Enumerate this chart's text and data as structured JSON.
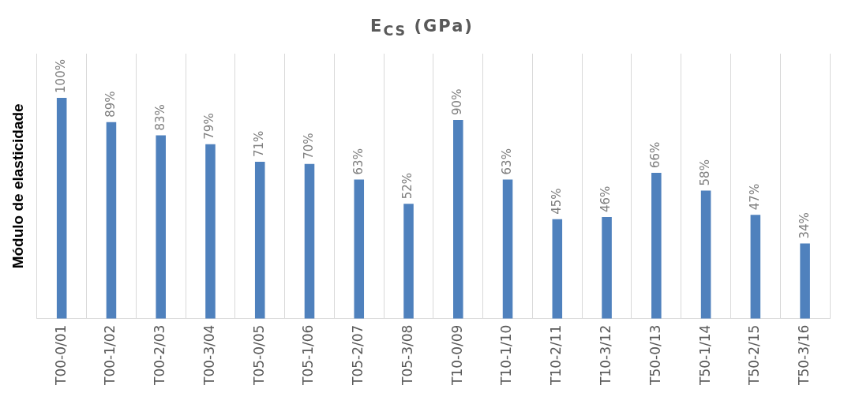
{
  "chart_data": {
    "type": "bar",
    "title": "E$_{CS}$ (GPa)",
    "ylabel": "Módulo de elasticidade",
    "categories": [
      "T00-0/01",
      "T00-1/02",
      "T00-2/03",
      "T00-3/04",
      "T05-0/05",
      "T05-1/06",
      "T05-2/07",
      "T05-3/08",
      "T10-0/09",
      "T10-1/10",
      "T10-2/11",
      "T10-3/12",
      "T50-0/13",
      "T50-1/14",
      "T50-2/15",
      "T50-3/16"
    ],
    "values": [
      100,
      89,
      83,
      79,
      71,
      70,
      63,
      52,
      90,
      63,
      45,
      46,
      66,
      58,
      47,
      34
    ],
    "value_labels": [
      "100%",
      "89%",
      "83%",
      "79%",
      "71%",
      "70%",
      "63%",
      "52%",
      "90%",
      "63%",
      "45%",
      "46%",
      "66%",
      "58%",
      "47%",
      "34%"
    ],
    "color": "#4f81bd",
    "grid": "x",
    "legend": false
  }
}
